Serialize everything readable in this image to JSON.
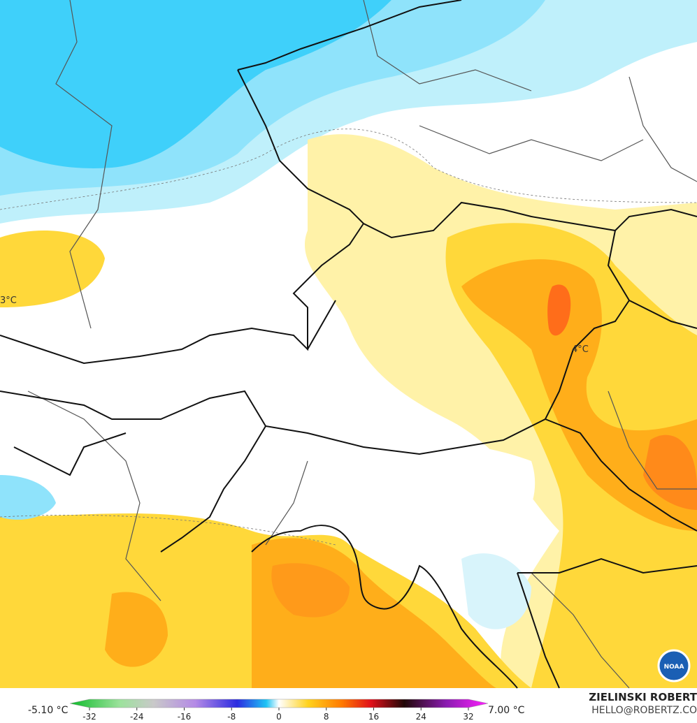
{
  "map": {
    "labels": [
      "3°C",
      "4°C"
    ]
  },
  "colorbar": {
    "min_label": "-5.10 °C",
    "max_label": "7.00 °C",
    "ticks": [
      -32,
      -24,
      -16,
      -8,
      0,
      8,
      16,
      24,
      32
    ]
  },
  "credit": {
    "name": "ZIELINSKI ROBERT",
    "email": "HELLO@ROBERTZ.CO",
    "logo": "NOAA"
  }
}
